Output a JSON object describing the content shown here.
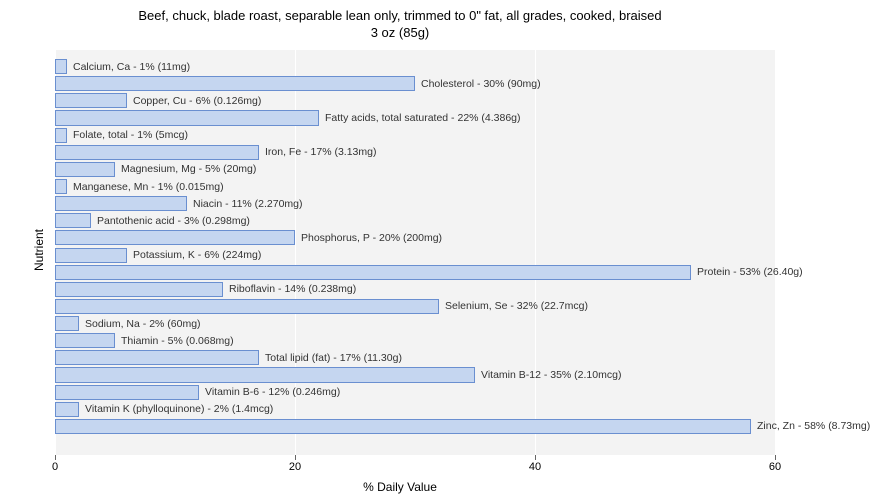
{
  "title_line1": "Beef, chuck, blade roast, separable lean only, trimmed to 0\" fat, all grades, cooked, braised",
  "title_line2": "3 oz (85g)",
  "y_axis_label": "Nutrient",
  "x_axis_label": "% Daily Value",
  "x_max": 60,
  "x_ticks": [
    0,
    20,
    40,
    60
  ],
  "bar_fill_color": "#c5d6f0",
  "bar_border_color": "#6a8fd0",
  "plot_bg": "#f3f3f3",
  "grid_color": "#ffffff",
  "nutrients": [
    {
      "label": "Calcium, Ca - 1% (11mg)",
      "value": 1
    },
    {
      "label": "Cholesterol - 30% (90mg)",
      "value": 30
    },
    {
      "label": "Copper, Cu - 6% (0.126mg)",
      "value": 6
    },
    {
      "label": "Fatty acids, total saturated - 22% (4.386g)",
      "value": 22
    },
    {
      "label": "Folate, total - 1% (5mcg)",
      "value": 1
    },
    {
      "label": "Iron, Fe - 17% (3.13mg)",
      "value": 17
    },
    {
      "label": "Magnesium, Mg - 5% (20mg)",
      "value": 5
    },
    {
      "label": "Manganese, Mn - 1% (0.015mg)",
      "value": 1
    },
    {
      "label": "Niacin - 11% (2.270mg)",
      "value": 11
    },
    {
      "label": "Pantothenic acid - 3% (0.298mg)",
      "value": 3
    },
    {
      "label": "Phosphorus, P - 20% (200mg)",
      "value": 20
    },
    {
      "label": "Potassium, K - 6% (224mg)",
      "value": 6
    },
    {
      "label": "Protein - 53% (26.40g)",
      "value": 53
    },
    {
      "label": "Riboflavin - 14% (0.238mg)",
      "value": 14
    },
    {
      "label": "Selenium, Se - 32% (22.7mcg)",
      "value": 32
    },
    {
      "label": "Sodium, Na - 2% (60mg)",
      "value": 2
    },
    {
      "label": "Thiamin - 5% (0.068mg)",
      "value": 5
    },
    {
      "label": "Total lipid (fat) - 17% (11.30g)",
      "value": 17
    },
    {
      "label": "Vitamin B-12 - 35% (2.10mcg)",
      "value": 35
    },
    {
      "label": "Vitamin B-6 - 12% (0.246mg)",
      "value": 12
    },
    {
      "label": "Vitamin K (phylloquinone) - 2% (1.4mcg)",
      "value": 2
    },
    {
      "label": "Zinc, Zn - 58% (8.73mg)",
      "value": 58
    }
  ]
}
